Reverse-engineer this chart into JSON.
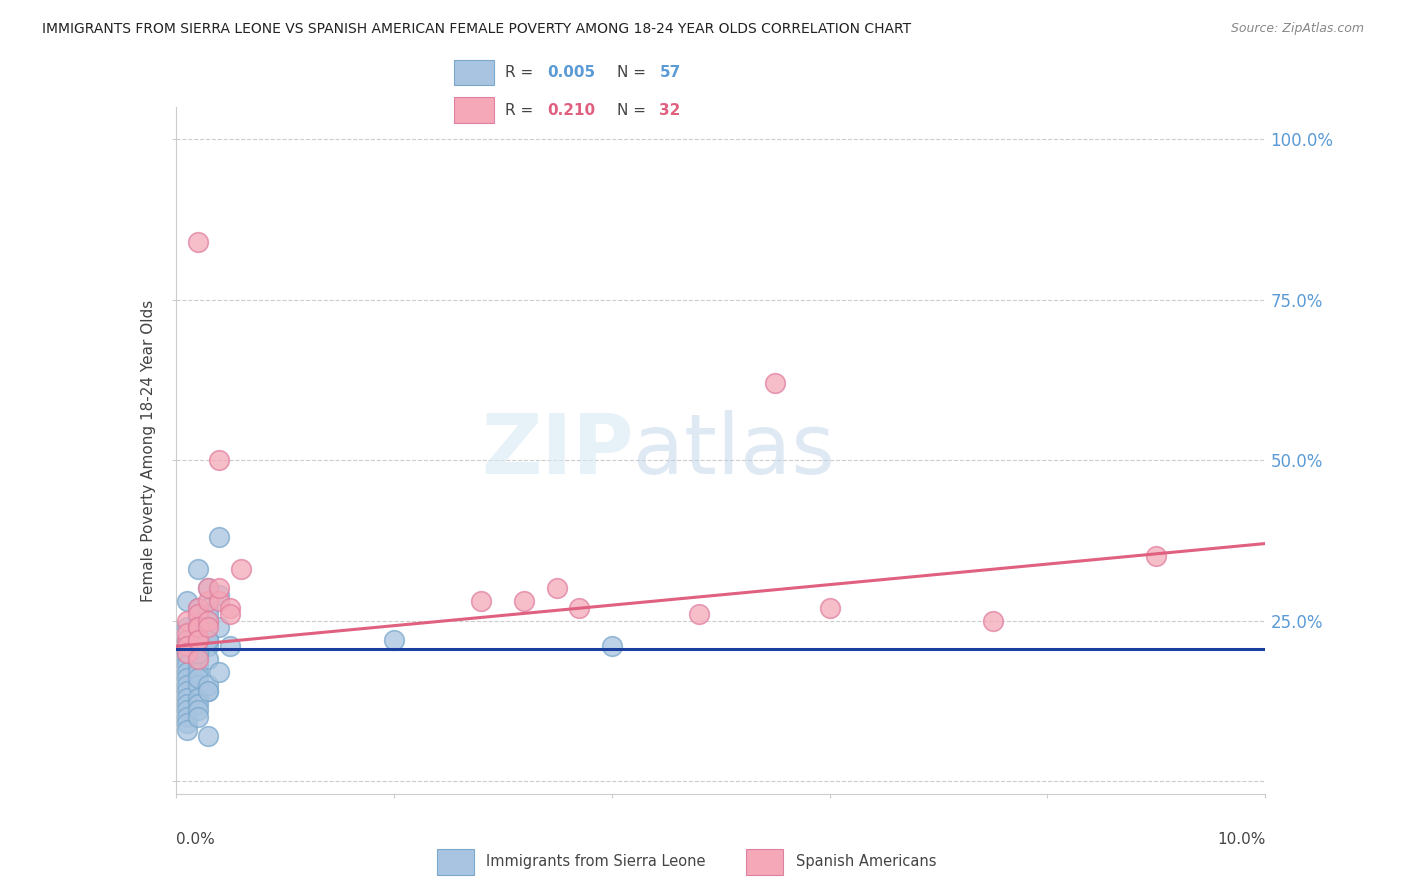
{
  "title": "IMMIGRANTS FROM SIERRA LEONE VS SPANISH AMERICAN FEMALE POVERTY AMONG 18-24 YEAR OLDS CORRELATION CHART",
  "source": "Source: ZipAtlas.com",
  "ylabel": "Female Poverty Among 18-24 Year Olds",
  "xlim": [
    0.0,
    0.1
  ],
  "ylim": [
    -0.02,
    1.05
  ],
  "blue_R": "0.005",
  "blue_N": "57",
  "pink_R": "0.210",
  "pink_N": "32",
  "legend_label_blue": "Immigrants from Sierra Leone",
  "legend_label_pink": "Spanish Americans",
  "blue_color": "#a8c4e0",
  "blue_edge_color": "#7aa8cc",
  "pink_color": "#f4a8b8",
  "pink_edge_color": "#e080a0",
  "blue_line_color": "#1a3f9e",
  "pink_line_color": "#e06080",
  "ref_line_color": "#aaaacc",
  "grid_color": "#cccccc",
  "right_tick_color": "#5b9bd5",
  "blue_x": [
    0.001,
    0.002,
    0.001,
    0.002,
    0.001,
    0.003,
    0.001,
    0.002,
    0.001,
    0.002,
    0.001,
    0.002,
    0.003,
    0.001,
    0.002,
    0.001,
    0.002,
    0.001,
    0.002,
    0.001,
    0.003,
    0.002,
    0.001,
    0.002,
    0.003,
    0.001,
    0.002,
    0.001,
    0.002,
    0.003,
    0.001,
    0.002,
    0.001,
    0.003,
    0.002,
    0.001,
    0.002,
    0.003,
    0.001,
    0.002,
    0.003,
    0.004,
    0.002,
    0.003,
    0.004,
    0.003,
    0.005,
    0.004,
    0.003,
    0.004,
    0.003,
    0.002,
    0.02,
    0.04,
    0.001,
    0.002,
    0.003
  ],
  "blue_y": [
    0.28,
    0.33,
    0.24,
    0.27,
    0.22,
    0.3,
    0.21,
    0.25,
    0.2,
    0.24,
    0.19,
    0.23,
    0.27,
    0.2,
    0.22,
    0.18,
    0.21,
    0.17,
    0.2,
    0.16,
    0.22,
    0.19,
    0.15,
    0.18,
    0.21,
    0.14,
    0.17,
    0.13,
    0.15,
    0.19,
    0.12,
    0.16,
    0.11,
    0.14,
    0.13,
    0.1,
    0.12,
    0.15,
    0.09,
    0.11,
    0.14,
    0.17,
    0.2,
    0.25,
    0.38,
    0.22,
    0.21,
    0.24,
    0.26,
    0.29,
    0.22,
    0.2,
    0.22,
    0.21,
    0.08,
    0.1,
    0.07
  ],
  "pink_x": [
    0.001,
    0.001,
    0.002,
    0.001,
    0.002,
    0.001,
    0.002,
    0.001,
    0.002,
    0.003,
    0.002,
    0.003,
    0.002,
    0.003,
    0.002,
    0.004,
    0.003,
    0.004,
    0.005,
    0.004,
    0.005,
    0.006,
    0.028,
    0.032,
    0.035,
    0.055,
    0.06,
    0.048,
    0.037,
    0.09,
    0.075,
    0.002
  ],
  "pink_y": [
    0.25,
    0.22,
    0.27,
    0.23,
    0.26,
    0.21,
    0.24,
    0.2,
    0.22,
    0.28,
    0.24,
    0.3,
    0.22,
    0.25,
    0.19,
    0.28,
    0.24,
    0.5,
    0.27,
    0.3,
    0.26,
    0.33,
    0.28,
    0.28,
    0.3,
    0.62,
    0.27,
    0.26,
    0.27,
    0.35,
    0.25,
    0.84
  ],
  "blue_line_x": [
    0.0,
    0.1
  ],
  "blue_line_y": [
    0.205,
    0.205
  ],
  "pink_line_x": [
    0.0,
    0.1
  ],
  "pink_line_y": [
    0.21,
    0.37
  ],
  "ref_line_y": 0.205
}
